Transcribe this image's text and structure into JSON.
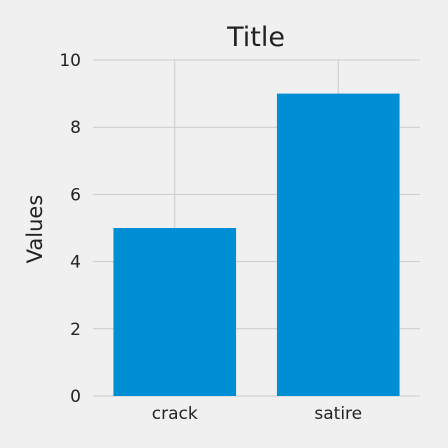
{
  "chart_data": {
    "type": "bar",
    "title": "Title",
    "xlabel": "",
    "ylabel": "Values",
    "categories": [
      "crack",
      "satire"
    ],
    "values": [
      5,
      9
    ],
    "ylim": [
      0,
      10
    ],
    "yticks": [
      0,
      2,
      4,
      6,
      8,
      10
    ],
    "grid": true,
    "bar_color": "#008fd5",
    "background_color": "#f0f0f0",
    "grid_color": "#cbcbcb"
  }
}
